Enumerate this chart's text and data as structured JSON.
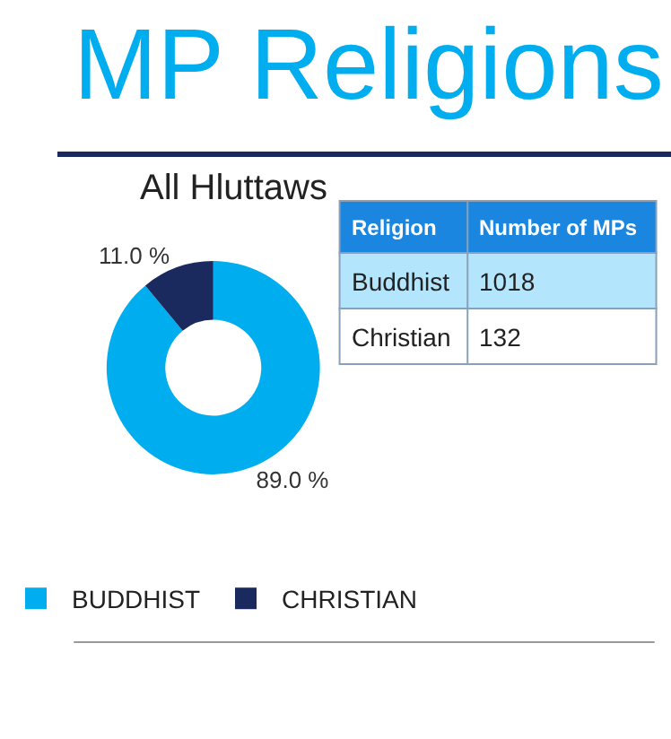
{
  "chart_data": {
    "type": "donut",
    "title": "MP Religions",
    "subtitle": "All Hluttaws",
    "categories": [
      "BUDDHIST",
      "CHRISTIAN"
    ],
    "values": [
      89.0,
      11.0
    ],
    "value_labels": [
      "89.0 %",
      "11.0 %"
    ],
    "colors": [
      "#00aeef",
      "#1b2a5e"
    ],
    "annotations": [
      "Religion",
      "Number of MPs",
      "Buddhist",
      "1018",
      "Christian",
      "132"
    ],
    "legend": "bottom"
  }
}
